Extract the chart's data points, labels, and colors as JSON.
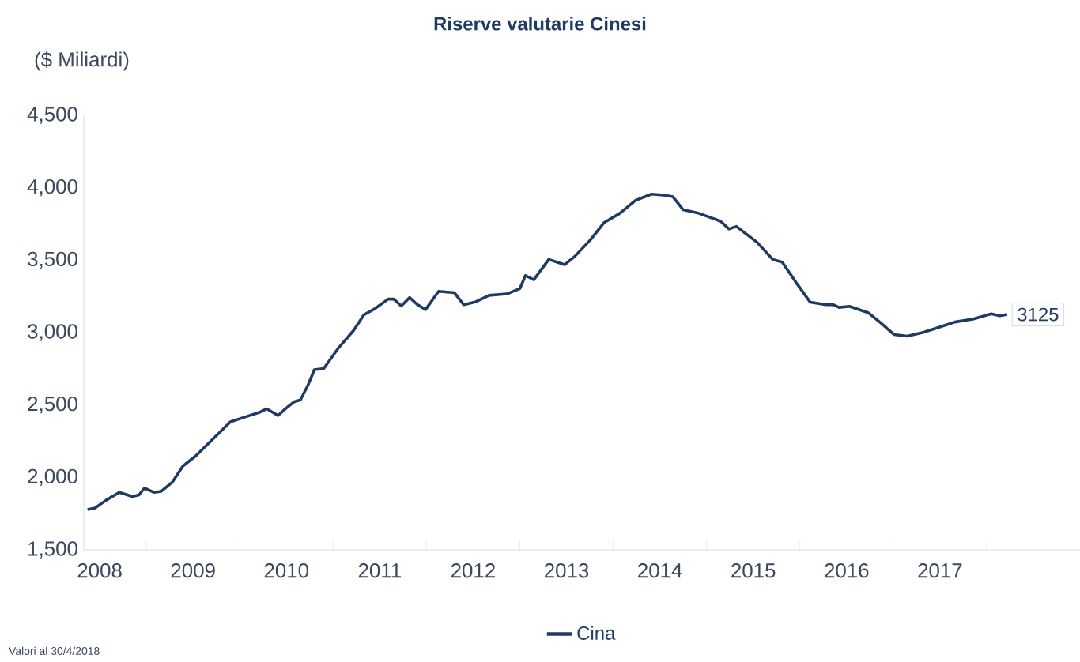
{
  "chart_data": {
    "type": "line",
    "title": "Riserve valutarie Cinesi",
    "ylabel": "($ Miliardi)",
    "x": [
      2008.37,
      2008.45,
      2008.57,
      2008.71,
      2008.85,
      2008.92,
      2008.98,
      2009.08,
      2009.16,
      2009.28,
      2009.39,
      2009.53,
      2009.7,
      2009.9,
      2010.07,
      2010.21,
      2010.29,
      2010.41,
      2010.49,
      2010.58,
      2010.65,
      2010.73,
      2010.8,
      2010.9,
      2011.06,
      2011.22,
      2011.33,
      2011.45,
      2011.59,
      2011.65,
      2011.73,
      2011.82,
      2011.9,
      2011.99,
      2012.13,
      2012.3,
      2012.4,
      2012.53,
      2012.67,
      2012.86,
      2013.0,
      2013.06,
      2013.15,
      2013.31,
      2013.48,
      2013.59,
      2013.76,
      2013.9,
      2014.07,
      2014.24,
      2014.41,
      2014.54,
      2014.64,
      2014.75,
      2014.92,
      2015.15,
      2015.24,
      2015.32,
      2015.54,
      2015.71,
      2015.81,
      2015.97,
      2016.11,
      2016.28,
      2016.36,
      2016.42,
      2016.53,
      2016.73,
      2016.87,
      2017.01,
      2017.15,
      2017.32,
      2017.49,
      2017.66,
      2017.86,
      2018.05,
      2018.14,
      2018.22
    ],
    "series": [
      {
        "name": "Cina",
        "color": "#1f3b63",
        "values": [
          1778,
          1789,
          1843,
          1897,
          1868,
          1879,
          1926,
          1897,
          1904,
          1969,
          2077,
          2149,
          2257,
          2384,
          2420,
          2449,
          2474,
          2427,
          2474,
          2521,
          2535,
          2636,
          2744,
          2752,
          2896,
          3015,
          3123,
          3166,
          3231,
          3231,
          3184,
          3242,
          3195,
          3159,
          3285,
          3275,
          3192,
          3213,
          3257,
          3267,
          3303,
          3394,
          3365,
          3505,
          3469,
          3527,
          3643,
          3758,
          3823,
          3913,
          3956,
          3949,
          3938,
          3848,
          3823,
          3769,
          3715,
          3733,
          3624,
          3505,
          3487,
          3336,
          3210,
          3192,
          3192,
          3174,
          3181,
          3138,
          3065,
          2986,
          2975,
          3001,
          3037,
          3073,
          3094,
          3130,
          3116,
          3125
        ]
      }
    ],
    "xlim": [
      2008.33,
      2019
    ],
    "xticks": [
      {
        "value": 2008.5,
        "label": "2008"
      },
      {
        "value": 2009.5,
        "label": "2009"
      },
      {
        "value": 2010.5,
        "label": "2010"
      },
      {
        "value": 2011.5,
        "label": "2011"
      },
      {
        "value": 2012.5,
        "label": "2012"
      },
      {
        "value": 2013.5,
        "label": "2013"
      },
      {
        "value": 2014.5,
        "label": "2014"
      },
      {
        "value": 2015.5,
        "label": "2015"
      },
      {
        "value": 2016.5,
        "label": "2016"
      },
      {
        "value": 2017.5,
        "label": "2017"
      },
      {
        "value": 2009,
        "label": null
      },
      {
        "value": 2010,
        "label": null
      },
      {
        "value": 2011,
        "label": null
      },
      {
        "value": 2012,
        "label": null
      },
      {
        "value": 2013,
        "label": null
      },
      {
        "value": 2014,
        "label": null
      },
      {
        "value": 2015,
        "label": null
      },
      {
        "value": 2016,
        "label": null
      },
      {
        "value": 2017,
        "label": null
      },
      {
        "value": 2018,
        "label": null
      }
    ],
    "ylim": [
      1500,
      4500
    ],
    "yticks": [
      {
        "value": 1500,
        "label": "1,500"
      },
      {
        "value": 2000,
        "label": "2,000"
      },
      {
        "value": 2500,
        "label": "2,500"
      },
      {
        "value": 3000,
        "label": "3,000"
      },
      {
        "value": 3500,
        "label": "3,500"
      },
      {
        "value": 4000,
        "label": "4,000"
      },
      {
        "value": 4500,
        "label": "4,500"
      }
    ],
    "legend": "bottom",
    "annotations": [
      {
        "text": "3125",
        "x": 2018.22,
        "y": 3125
      },
      "Valori al 30/4/2018"
    ]
  }
}
